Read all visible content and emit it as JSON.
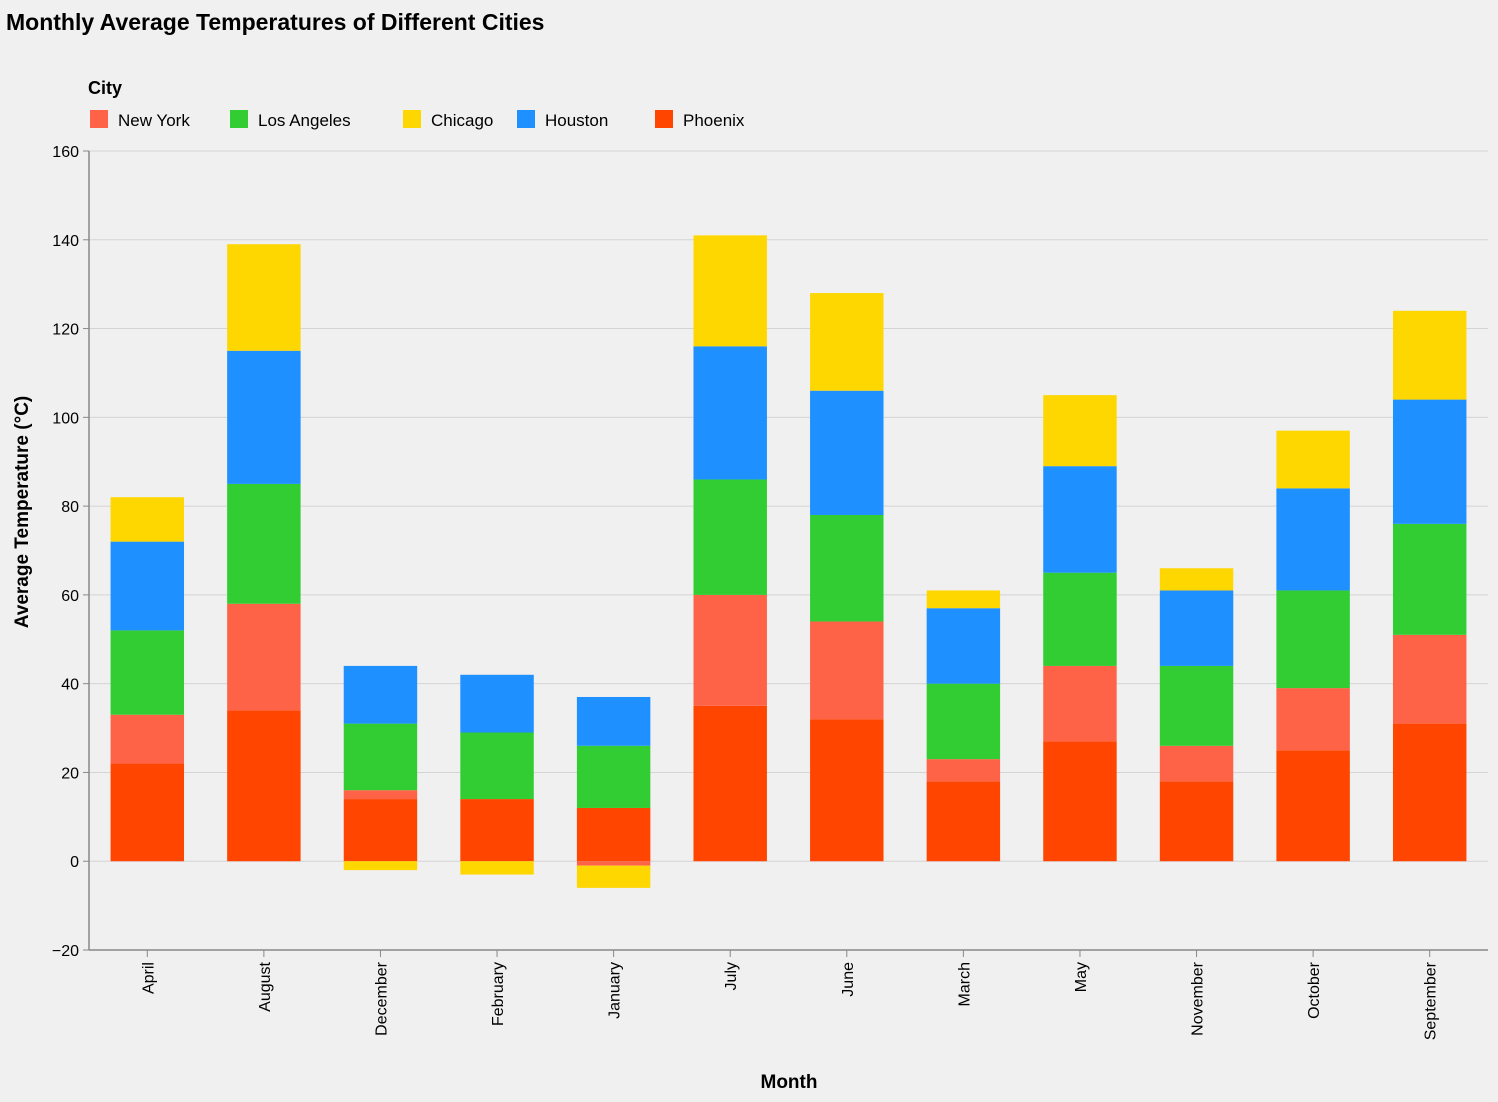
{
  "chart_data": {
    "type": "bar",
    "stacked": true,
    "title": "Monthly Average Temperatures of Different Cities",
    "xlabel": "Month",
    "ylabel": "Average Temperature (°C)",
    "ylim": [
      -20,
      160
    ],
    "yticks": [
      -20,
      0,
      20,
      40,
      60,
      80,
      100,
      120,
      140,
      160
    ],
    "grid": true,
    "legend": {
      "title": "City",
      "placement": "top-left"
    },
    "categories": [
      "April",
      "August",
      "December",
      "February",
      "January",
      "July",
      "June",
      "March",
      "May",
      "November",
      "October",
      "September"
    ],
    "stack_order": [
      "Phoenix",
      "New York",
      "Los Angeles",
      "Houston",
      "Chicago"
    ],
    "series": [
      {
        "name": "New York",
        "color": "#ff6347",
        "values": [
          11,
          24,
          2,
          0,
          -1,
          25,
          22,
          5,
          17,
          8,
          14,
          20
        ]
      },
      {
        "name": "Los Angeles",
        "color": "#32cd32",
        "values": [
          19,
          27,
          15,
          15,
          14,
          26,
          24,
          17,
          21,
          18,
          22,
          25
        ]
      },
      {
        "name": "Chicago",
        "color": "#ffd700",
        "values": [
          10,
          24,
          -2,
          -3,
          -5,
          25,
          22,
          4,
          16,
          5,
          13,
          20
        ]
      },
      {
        "name": "Houston",
        "color": "#1e90ff",
        "values": [
          20,
          30,
          13,
          13,
          11,
          30,
          28,
          17,
          24,
          17,
          23,
          28
        ]
      },
      {
        "name": "Phoenix",
        "color": "#ff4500",
        "values": [
          22,
          34,
          14,
          14,
          12,
          35,
          32,
          18,
          27,
          18,
          25,
          31
        ]
      }
    ]
  }
}
